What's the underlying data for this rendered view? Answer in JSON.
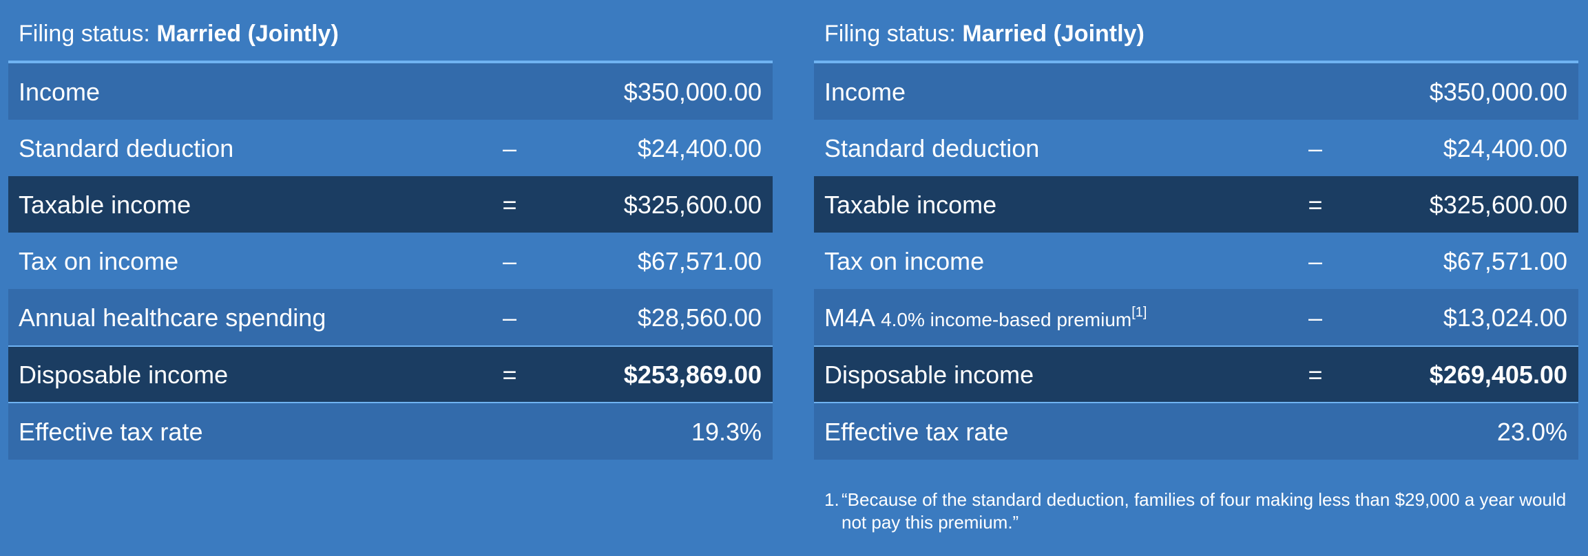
{
  "left": {
    "filing_label": "Filing status: ",
    "filing_value": "Married (Jointly)",
    "rows": [
      {
        "label": "Income",
        "op": "",
        "amount": "$350,000.00"
      },
      {
        "label": "Standard deduction",
        "op": "–",
        "amount": "$24,400.00"
      },
      {
        "label": "Taxable income",
        "op": "=",
        "amount": "$325,600.00"
      },
      {
        "label": "Tax on income",
        "op": "–",
        "amount": "$67,571.00"
      },
      {
        "label": "Annual healthcare spending",
        "op": "–",
        "amount": "$28,560.00"
      },
      {
        "label": "Disposable income",
        "op": "=",
        "amount": "$253,869.00"
      },
      {
        "label": "Effective tax rate",
        "op": "",
        "amount": "19.3%"
      }
    ]
  },
  "right": {
    "filing_label": "Filing status: ",
    "filing_value": "Married (Jointly)",
    "rows": [
      {
        "label": "Income",
        "op": "",
        "amount": "$350,000.00"
      },
      {
        "label": "Standard deduction",
        "op": "–",
        "amount": "$24,400.00"
      },
      {
        "label": "Taxable income",
        "op": "=",
        "amount": "$325,600.00"
      },
      {
        "label": "Tax on income",
        "op": "–",
        "amount": "$67,571.00"
      },
      {
        "label": "M4A",
        "label_small": "4.0% income-based premium",
        "footnote_ref": "[1]",
        "op": "–",
        "amount": "$13,024.00"
      },
      {
        "label": "Disposable income",
        "op": "=",
        "amount": "$269,405.00"
      },
      {
        "label": "Effective tax rate",
        "op": "",
        "amount": "23.0%"
      }
    ],
    "footnote": {
      "number": "1.",
      "text": "“Because of the standard deduction, families of four making less than $29,000 a year would not pay this premium.”"
    }
  }
}
